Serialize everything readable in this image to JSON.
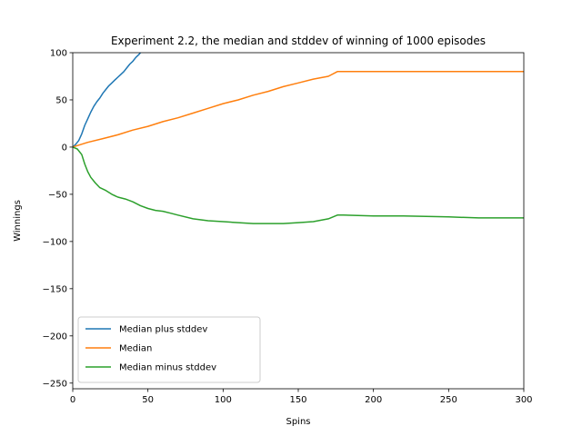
{
  "chart_data": {
    "type": "line",
    "title": "Experiment 2.2, the median and stddev of winning of 1000 episodes",
    "xlabel": "Spins",
    "ylabel": "Winnings",
    "xlim": [
      0,
      300
    ],
    "ylim": [
      -256,
      100
    ],
    "grid": false,
    "legend_position": "lower-left",
    "x_ticks": [
      0,
      50,
      100,
      150,
      200,
      250,
      300
    ],
    "y_ticks": [
      100,
      50,
      0,
      -50,
      -100,
      -150,
      -200,
      -250
    ],
    "x_tick_labels": [
      "0",
      "50",
      "100",
      "150",
      "200",
      "250",
      "300"
    ],
    "y_tick_labels": [
      "100",
      "50",
      "0",
      "−50",
      "−100",
      "−150",
      "−200",
      "−250"
    ],
    "series": [
      {
        "name": "Median plus stddev",
        "color": "#1f77b4",
        "x": [
          0,
          2,
          4,
          6,
          8,
          10,
          12,
          14,
          16,
          18,
          20,
          22,
          24,
          26,
          28,
          30,
          32,
          34,
          36,
          38,
          40,
          42,
          44,
          45
        ],
        "y": [
          0,
          3,
          7,
          14,
          23,
          30,
          37,
          43,
          48,
          52,
          57,
          61,
          65,
          68,
          71,
          74,
          77,
          80,
          84,
          88,
          91,
          95,
          98,
          100
        ]
      },
      {
        "name": "Median",
        "color": "#ff7f0e",
        "x": [
          0,
          10,
          20,
          30,
          40,
          50,
          60,
          70,
          80,
          90,
          100,
          110,
          120,
          130,
          140,
          150,
          160,
          170,
          176,
          180,
          200,
          250,
          300
        ],
        "y": [
          0,
          5,
          9,
          13,
          18,
          22,
          27,
          31,
          36,
          41,
          46,
          50,
          55,
          59,
          64,
          68,
          72,
          75,
          80,
          80,
          80,
          80,
          80
        ]
      },
      {
        "name": "Median minus stddev",
        "color": "#2ca02c",
        "x": [
          0,
          3,
          6,
          8,
          10,
          12,
          15,
          18,
          22,
          26,
          30,
          35,
          40,
          45,
          50,
          55,
          60,
          65,
          70,
          80,
          90,
          100,
          110,
          120,
          130,
          140,
          150,
          160,
          170,
          176,
          180,
          200,
          220,
          250,
          270,
          300
        ],
        "y": [
          0,
          -2,
          -8,
          -18,
          -26,
          -32,
          -38,
          -43,
          -46,
          -50,
          -53,
          -55,
          -58,
          -62,
          -65,
          -67,
          -68,
          -70,
          -72,
          -76,
          -78,
          -79,
          -80,
          -81,
          -81,
          -81,
          -80,
          -79,
          -76,
          -72,
          -72,
          -73,
          -73,
          -74,
          -75,
          -75
        ]
      }
    ]
  }
}
